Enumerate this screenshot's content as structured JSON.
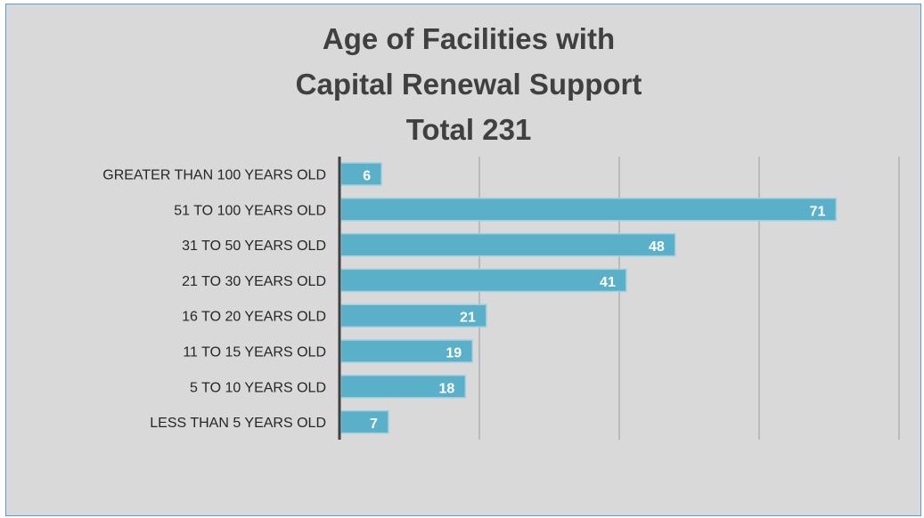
{
  "chart_data": {
    "type": "bar",
    "orientation": "horizontal",
    "title": [
      "Age of Facilities with",
      "Capital Renewal Support",
      "Total 231"
    ],
    "categories": [
      "GREATER THAN 100 YEARS OLD",
      "51 TO 100 YEARS OLD",
      "31 TO 50 YEARS OLD",
      "21 TO 30 YEARS OLD",
      "16 TO 20 YEARS OLD",
      "11 TO 15 YEARS OLD",
      "5 TO 10 YEARS OLD",
      "LESS THAN 5 YEARS OLD"
    ],
    "values": [
      6,
      71,
      48,
      41,
      21,
      19,
      18,
      7
    ],
    "xlim": [
      0,
      80
    ],
    "gridlines": [
      20,
      40,
      60,
      80
    ],
    "grid": true,
    "legend": "none",
    "colors": {
      "bar": "#5aafc9",
      "bar_border": "#9fd0e0",
      "background": "#d9d9d9",
      "frame": "#5b9bd5",
      "gridline": "#a6a6a6",
      "axis": "#404040",
      "title": "#404040",
      "data_label": "#ffffff"
    }
  }
}
